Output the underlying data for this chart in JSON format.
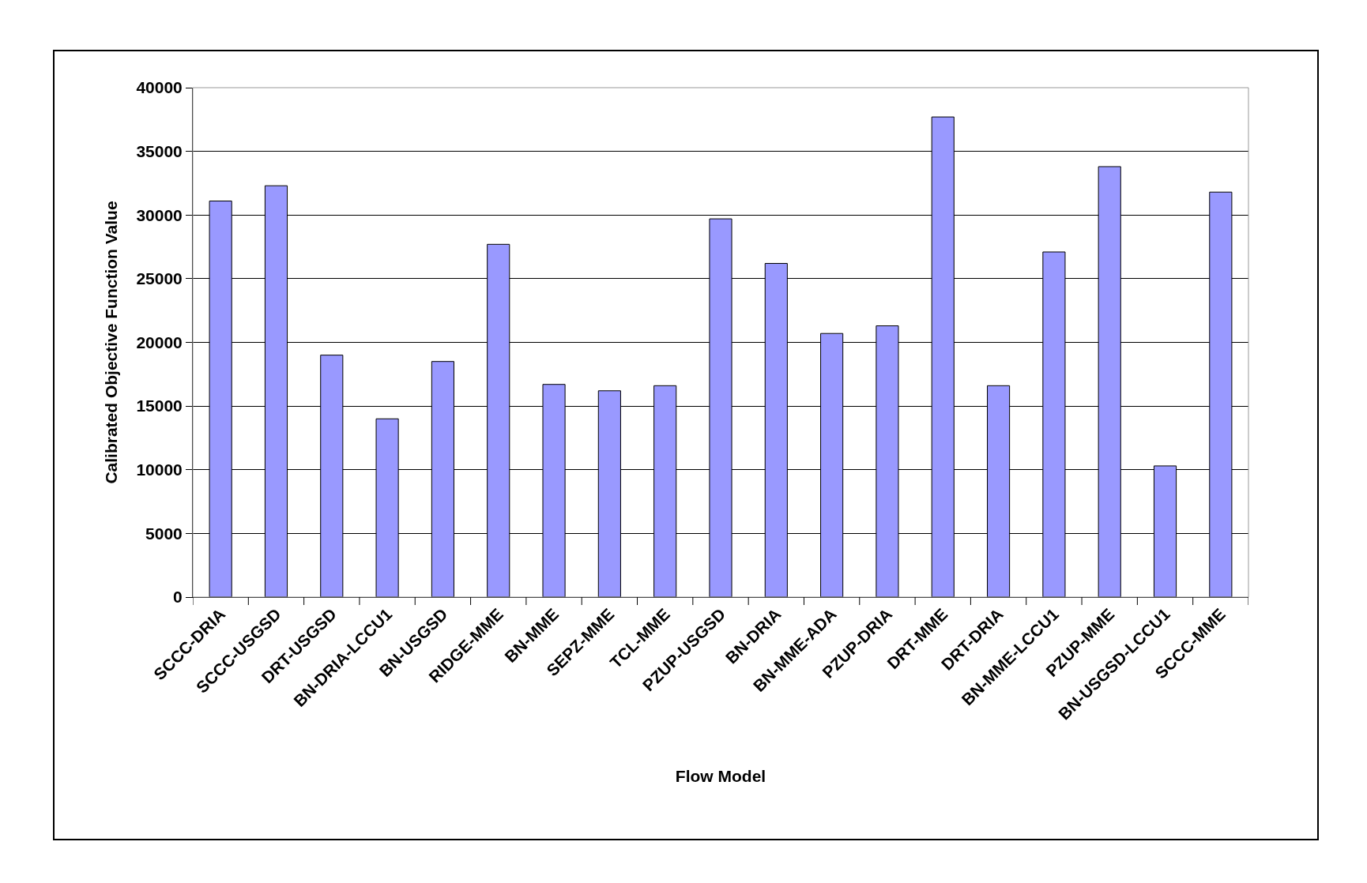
{
  "chart_data": {
    "type": "bar",
    "xlabel": "Flow Model",
    "ylabel": "Calibrated Objective Function Value",
    "categories": [
      "SCCC-DRIA",
      "SCCC-USGSD",
      "DRT-USGSD",
      "BN-DRIA-LCCU1",
      "BN-USGSD",
      "RIDGE-MME",
      "BN-MME",
      "SEPZ-MME",
      "TCL-MME",
      "PZUP-USGSD",
      "BN-DRIA",
      "BN-MME-ADA",
      "PZUP-DRIA",
      "DRT-MME",
      "DRT-DRIA",
      "BN-MME-LCCU1",
      "PZUP-MME",
      "BN-USGSD-LCCU1",
      "SCCC-MME"
    ],
    "values": [
      31100,
      32300,
      19000,
      14000,
      18500,
      27700,
      16700,
      16200,
      16600,
      29700,
      26200,
      20700,
      21300,
      37700,
      16600,
      27100,
      33800,
      10300,
      31800
    ],
    "color": "#9999ff",
    "ylim": [
      0,
      40000
    ],
    "yticks": [
      0,
      5000,
      10000,
      15000,
      20000,
      25000,
      30000,
      35000,
      40000
    ],
    "grid": "y"
  }
}
